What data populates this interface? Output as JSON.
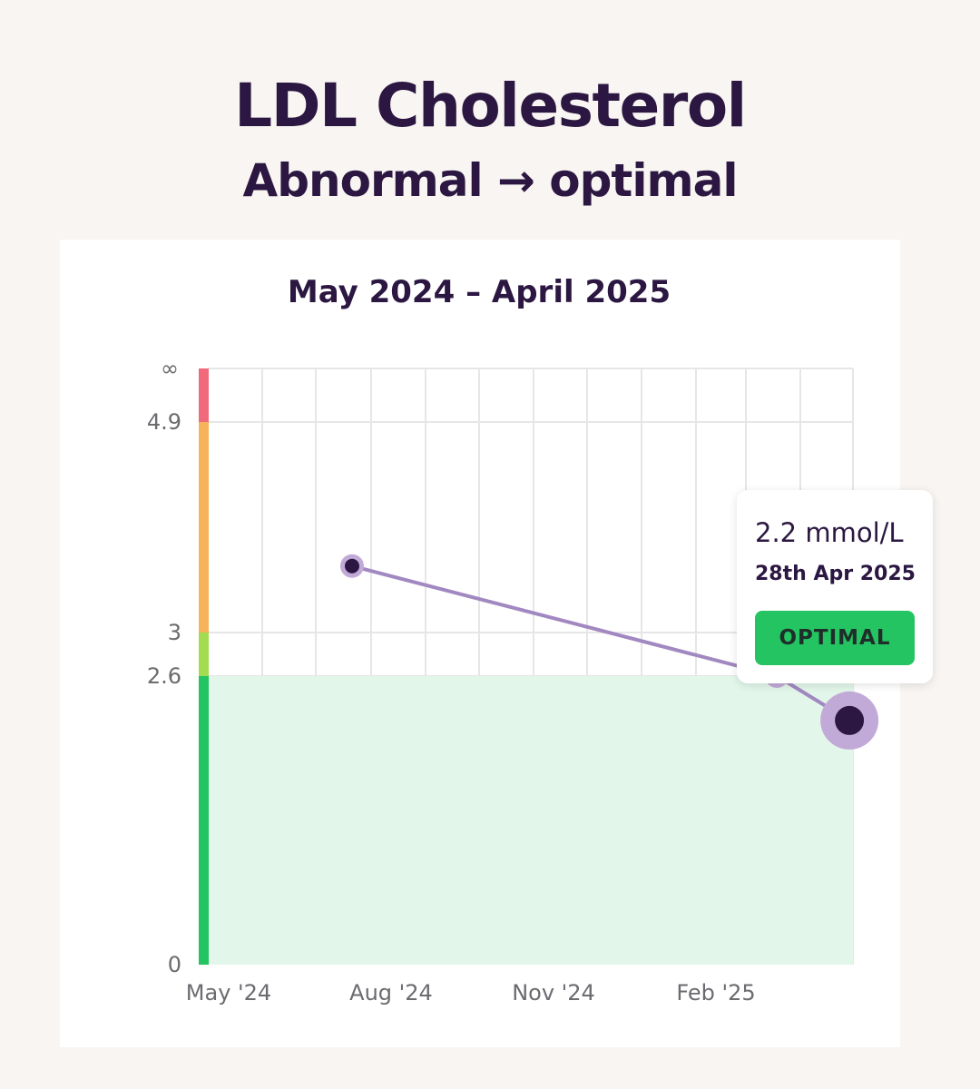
{
  "header": {
    "title": "LDL Cholesterol",
    "subtitle": "Abnormal → optimal"
  },
  "chart": {
    "date_range": "May 2024 – April 2025"
  },
  "tooltip": {
    "value": "2.2 mmol/L",
    "date": "28th Apr 2025",
    "status": "OPTIMAL"
  },
  "colors": {
    "optimal": "#23c461",
    "borderline": "#a3dc50",
    "high": "#f6b35a",
    "very_high": "#f16a7c",
    "line": "#a288c0",
    "point": "#2b1741",
    "point_halo": "#c2aad8",
    "optimal_fill": "#e2f6ea"
  },
  "chart_data": {
    "type": "line",
    "title": "May 2024 – April 2025",
    "x_tick_labels": [
      "May '24",
      "Aug '24",
      "Nov '24",
      "Feb '25"
    ],
    "y_tick_labels": [
      "0",
      "2.6",
      "3",
      "4.9",
      "∞"
    ],
    "bands": [
      {
        "from": 0,
        "to": 2.6,
        "status": "optimal"
      },
      {
        "from": 2.6,
        "to": 3,
        "status": "borderline"
      },
      {
        "from": 3,
        "to": 4.9,
        "status": "high"
      },
      {
        "from": 4.9,
        "to": "∞",
        "status": "very high"
      }
    ],
    "series": [
      {
        "points": [
          {
            "date": "2024-07-21",
            "value": 3.6
          },
          {
            "date": "2025-03-18",
            "value": 2.6
          },
          {
            "date": "2025-04-28",
            "value": 2.2,
            "highlighted": true
          }
        ]
      }
    ],
    "grid": true,
    "shaded_range": [
      0,
      2.6
    ]
  }
}
